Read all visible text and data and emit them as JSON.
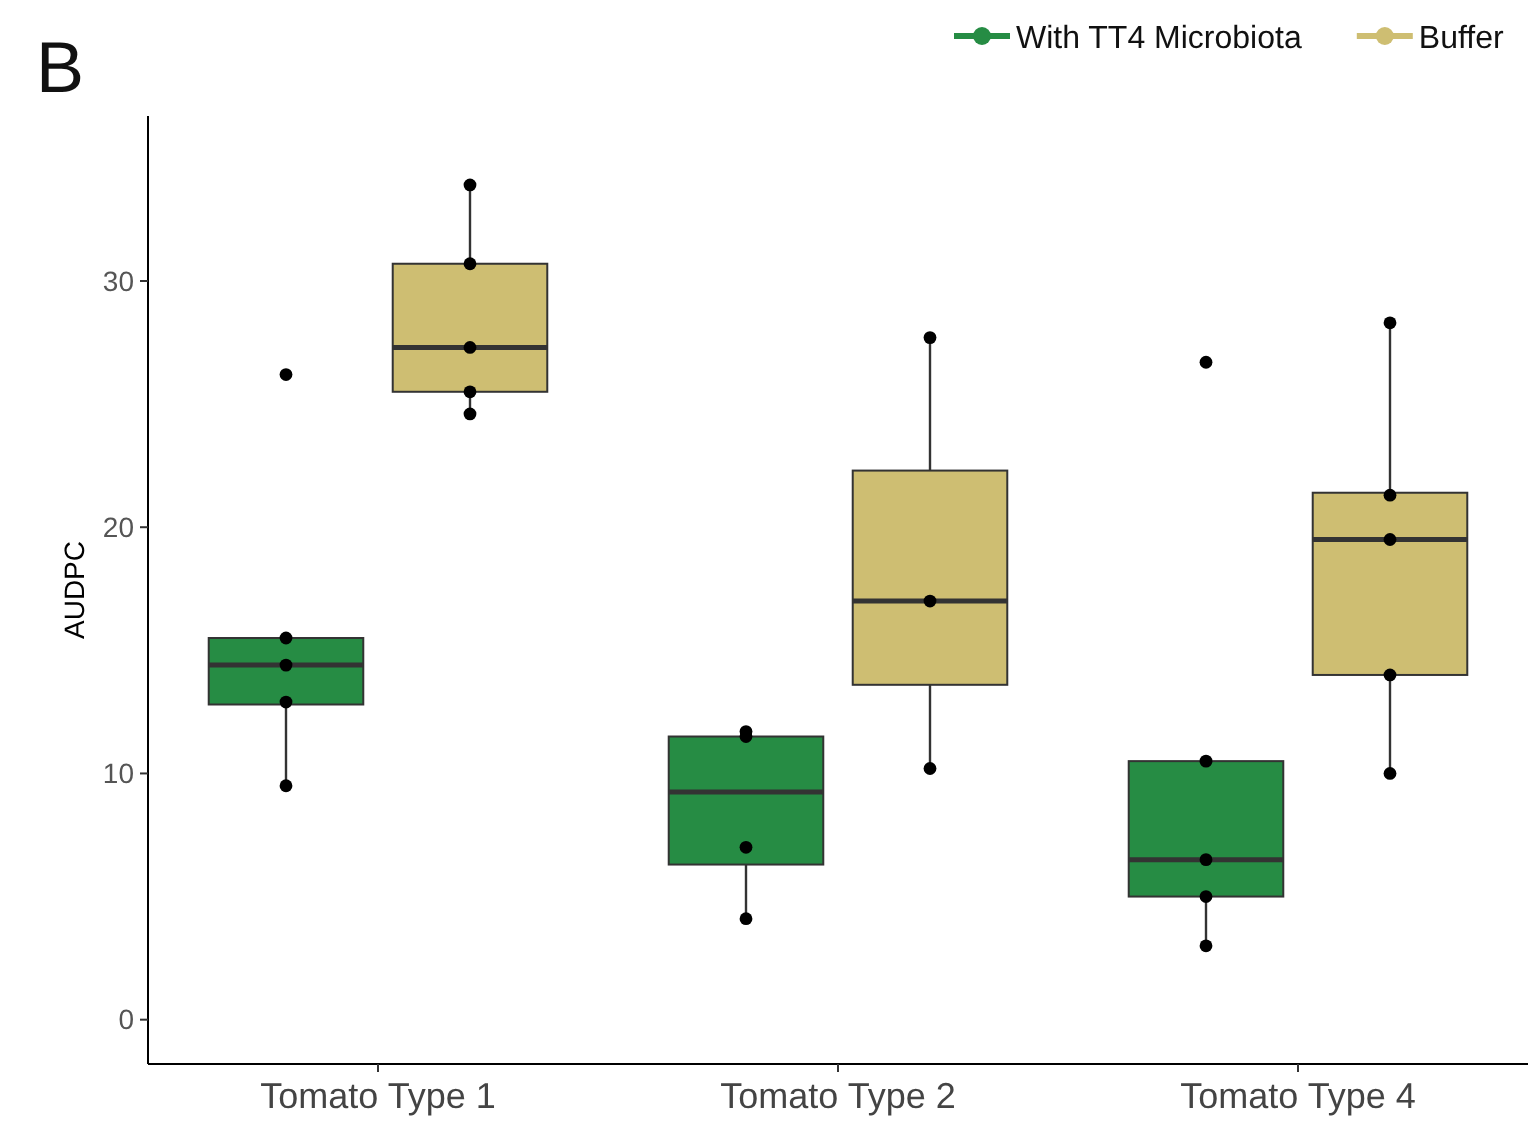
{
  "chart_data": {
    "type": "box",
    "title": "B",
    "ylabel": "AUDPC",
    "categories": [
      "Tomato Type 1",
      "Tomato Type 2",
      "Tomato Type 4"
    ],
    "ylim": [
      -1.8,
      36.7
    ],
    "yticks": [
      0,
      10,
      20,
      30
    ],
    "grid": false,
    "legend": "top right",
    "marker": "circle",
    "series": [
      {
        "name": "With TT4 Microbiota",
        "color": "#268c44",
        "boxes": [
          {
            "low": 9.5,
            "q1": 12.8,
            "median": 14.4,
            "q3": 15.5,
            "high": 15.5,
            "outliers": [
              26.2
            ]
          },
          {
            "low": 4.1,
            "q1": 6.3,
            "median": 9.25,
            "q3": 11.5,
            "high": 11.7
          },
          {
            "low": 3.0,
            "q1": 5.0,
            "median": 6.5,
            "q3": 10.5,
            "high": 10.5,
            "outliers": [
              26.7
            ]
          }
        ]
      },
      {
        "name": "Buffer",
        "color": "#cebe72",
        "boxes": [
          {
            "low": 24.6,
            "q1": 25.5,
            "median": 27.3,
            "q3": 30.7,
            "high": 33.9
          },
          {
            "low": 10.2,
            "q1": 13.6,
            "median": 17.0,
            "q3": 22.3,
            "high": 27.7
          },
          {
            "low": 10.0,
            "q1": 14.0,
            "median": 19.5,
            "q3": 21.4,
            "high": 28.3
          }
        ]
      },
      {
        "type": "scatter",
        "color": "#000000",
        "x": [
          "Tomato Type 1",
          "Tomato Type 1",
          "Tomato Type 1",
          "Tomato Type 1",
          "Tomato Type 2",
          "Tomato Type 2",
          "Tomato Type 2",
          "Tomato Type 2",
          "Tomato Type 4",
          "Tomato Type 4",
          "Tomato Type 4",
          "Tomato Type 4"
        ],
        "values": [
          15.5,
          14.4,
          12.9,
          9.5,
          11.7,
          11.5,
          7.0,
          4.1,
          10.5,
          6.5,
          5.0,
          3.0
        ]
      },
      {
        "type": "scatter",
        "color": "#000000",
        "x": [
          "Tomato Type 1",
          "Tomato Type 1",
          "Tomato Type 1",
          "Tomato Type 1",
          "Tomato Type 1",
          "Tomato Type 2",
          "Tomato Type 2",
          "Tomato Type 2",
          "Tomato Type 4",
          "Tomato Type 4",
          "Tomato Type 4",
          "Tomato Type 4",
          "Tomato Type 4"
        ],
        "values": [
          33.9,
          30.7,
          27.3,
          25.5,
          24.6,
          27.7,
          17.0,
          10.2,
          28.3,
          21.3,
          19.5,
          14.0,
          10.0
        ]
      }
    ]
  }
}
